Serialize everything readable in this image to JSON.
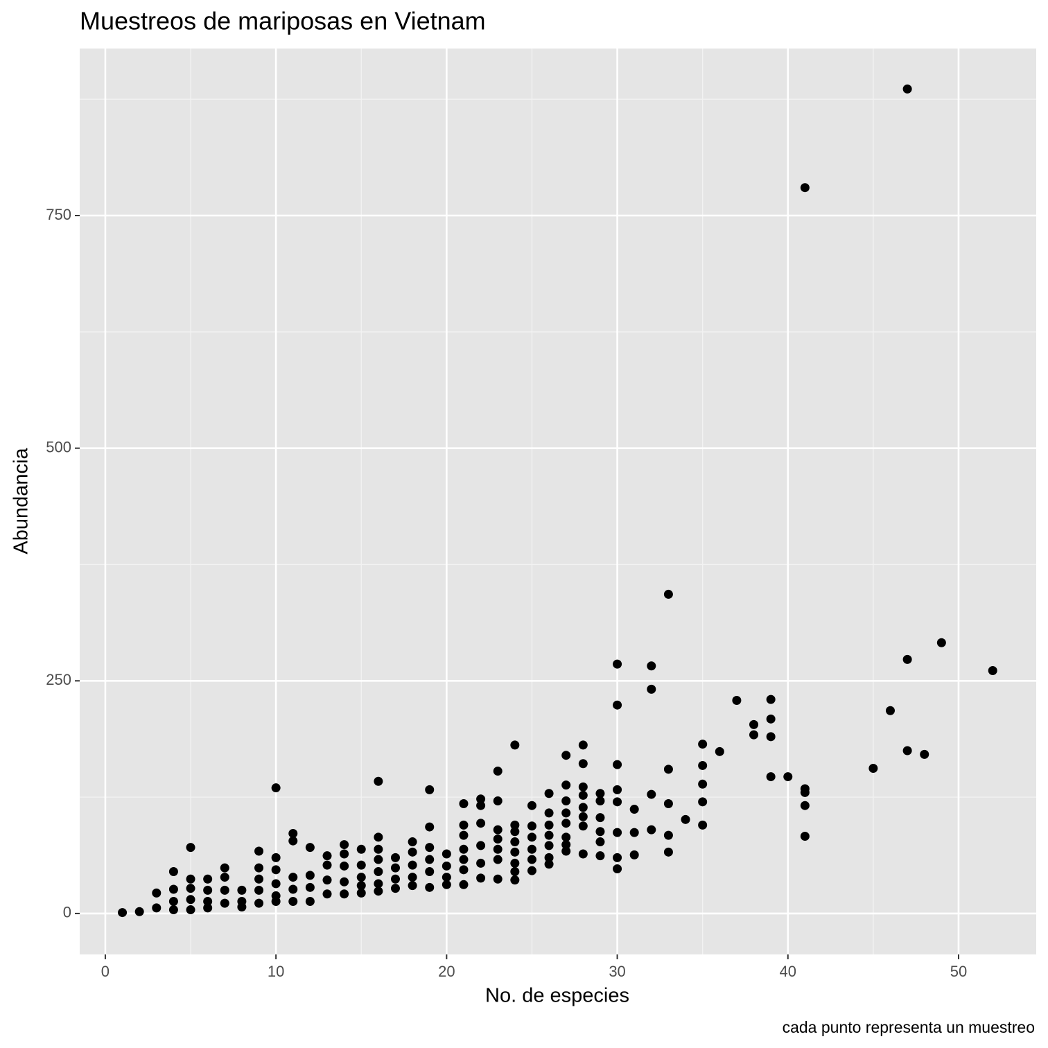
{
  "chart_data": {
    "type": "scatter",
    "title": "Muestreos de mariposas en Vietnam",
    "xlabel": "No. de especies",
    "ylabel": "Abundancia",
    "caption": "cada punto representa un muestreo",
    "x": [
      47,
      41,
      33,
      49,
      47,
      52,
      30,
      32,
      32,
      30,
      37,
      39,
      39,
      38,
      38,
      39,
      46,
      35,
      36,
      24,
      28,
      27,
      28,
      30,
      35,
      33,
      45,
      47,
      48,
      23,
      10,
      16,
      19,
      39,
      40,
      41,
      41,
      41,
      41,
      35,
      35,
      35,
      34,
      33,
      33,
      33,
      32,
      32,
      31,
      31,
      31,
      30,
      30,
      30,
      30,
      30,
      29,
      29,
      29,
      29,
      29,
      29,
      28,
      28,
      28,
      28,
      28,
      28,
      27,
      27,
      27,
      27,
      27,
      27,
      27,
      26,
      26,
      26,
      26,
      26,
      26,
      26,
      25,
      25,
      25,
      25,
      25,
      25,
      24,
      24,
      24,
      24,
      24,
      24,
      24,
      23,
      23,
      23,
      23,
      23,
      23,
      22,
      22,
      22,
      22,
      22,
      22,
      21,
      21,
      21,
      21,
      21,
      21,
      21,
      20,
      20,
      20,
      20,
      19,
      19,
      19,
      19,
      19,
      18,
      18,
      18,
      18,
      18,
      17,
      17,
      17,
      17,
      16,
      16,
      16,
      16,
      16,
      16,
      15,
      15,
      15,
      15,
      15,
      14,
      14,
      14,
      14,
      14,
      13,
      13,
      13,
      13,
      12,
      12,
      12,
      12,
      11,
      11,
      11,
      11,
      11,
      10,
      10,
      10,
      10,
      10,
      9,
      9,
      9,
      9,
      9,
      8,
      8,
      8,
      7,
      7,
      7,
      7,
      6,
      6,
      6,
      6,
      5,
      5,
      5,
      5,
      5,
      4,
      4,
      4,
      4,
      3,
      3,
      2,
      1
    ],
    "y": [
      886,
      780,
      343,
      291,
      273,
      261,
      268,
      266,
      241,
      224,
      229,
      230,
      209,
      203,
      192,
      190,
      218,
      182,
      174,
      181,
      181,
      170,
      161,
      160,
      159,
      155,
      156,
      175,
      171,
      153,
      135,
      142,
      133,
      147,
      147,
      134,
      130,
      116,
      83,
      139,
      120,
      95,
      101,
      118,
      84,
      66,
      128,
      90,
      112,
      87,
      63,
      133,
      120,
      87,
      60,
      48,
      129,
      121,
      103,
      88,
      77,
      62,
      136,
      127,
      114,
      104,
      94,
      64,
      138,
      121,
      108,
      97,
      82,
      74,
      67,
      129,
      108,
      95,
      84,
      73,
      60,
      53,
      116,
      94,
      82,
      69,
      58,
      46,
      95,
      88,
      77,
      66,
      54,
      45,
      36,
      121,
      90,
      80,
      69,
      58,
      37,
      123,
      116,
      97,
      73,
      54,
      38,
      118,
      95,
      84,
      69,
      58,
      47,
      31,
      64,
      51,
      39,
      31,
      93,
      71,
      58,
      45,
      28,
      77,
      66,
      52,
      39,
      30,
      60,
      49,
      37,
      27,
      82,
      69,
      58,
      45,
      32,
      24,
      69,
      52,
      39,
      30,
      22,
      74,
      64,
      51,
      34,
      21,
      62,
      52,
      36,
      21,
      71,
      41,
      28,
      13,
      86,
      78,
      39,
      26,
      13,
      60,
      47,
      32,
      19,
      13,
      67,
      49,
      37,
      25,
      11,
      25,
      13,
      7,
      49,
      39,
      25,
      11,
      37,
      25,
      13,
      6,
      71,
      37,
      27,
      15,
      4,
      45,
      26,
      13,
      4,
      22,
      6,
      2,
      1
    ],
    "color": "#000000",
    "xlim": [
      -1.5,
      54.55
    ],
    "ylim": [
      -44,
      929.5
    ],
    "xticks": [
      0,
      10,
      20,
      30,
      40,
      50
    ],
    "yticks": [
      0,
      250,
      500,
      750
    ],
    "grid": true,
    "minor_grid": true
  }
}
